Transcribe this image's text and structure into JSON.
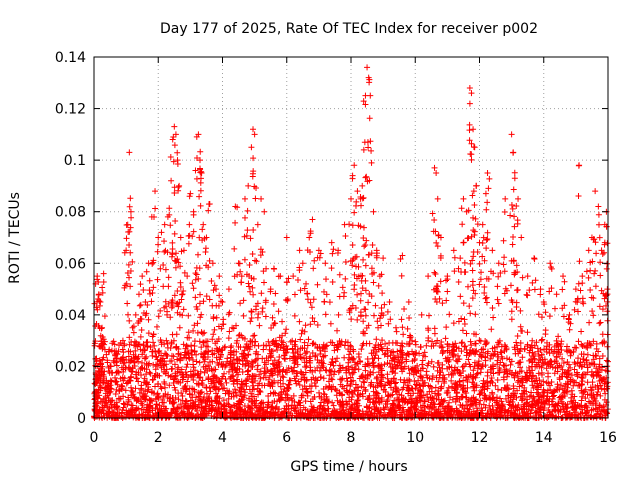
{
  "chart_data": {
    "type": "scatter",
    "title": "Day 177 of 2025, Rate Of TEC Index for receiver p002",
    "xlabel": "GPS time / hours",
    "ylabel": "ROTI / TECUs",
    "xlim": [
      0,
      16
    ],
    "ylim": [
      0,
      0.14
    ],
    "x_ticks": [
      0,
      2,
      4,
      6,
      8,
      10,
      12,
      14,
      16
    ],
    "x_tick_labels": [
      "0",
      "2",
      "4",
      "6",
      "8",
      "10",
      "12",
      "14",
      "16"
    ],
    "y_ticks": [
      0,
      0.02,
      0.04,
      0.06,
      0.08,
      0.1,
      0.12,
      0.14
    ],
    "y_tick_labels": [
      "0",
      "0.02",
      "0.04",
      "0.06",
      "0.08",
      "0.1",
      "0.12",
      "0.14"
    ],
    "grid": true,
    "marker": "+",
    "series": [
      {
        "name": "ROTI",
        "color": "#ff0000",
        "points": [
          [
            0.05,
            0.052
          ],
          [
            0.1,
            0.055
          ],
          [
            0.15,
            0.048
          ],
          [
            0.2,
            0.045
          ],
          [
            0.25,
            0.035
          ],
          [
            0.3,
            0.056
          ],
          [
            0.05,
            0.015
          ],
          [
            0.08,
            0.022
          ],
          [
            0.5,
            0.02
          ],
          [
            0.7,
            0.025
          ],
          [
            0.9,
            0.03
          ],
          [
            1.1,
            0.103
          ],
          [
            1.05,
            0.075
          ],
          [
            1.15,
            0.08
          ],
          [
            1.0,
            0.065
          ],
          [
            1.2,
            0.035
          ],
          [
            1.3,
            0.04
          ],
          [
            1.4,
            0.048
          ],
          [
            1.5,
            0.055
          ],
          [
            1.6,
            0.045
          ],
          [
            1.7,
            0.06
          ],
          [
            1.8,
            0.078
          ],
          [
            1.9,
            0.088
          ],
          [
            2.0,
            0.07
          ],
          [
            2.1,
            0.072
          ],
          [
            2.2,
            0.075
          ],
          [
            2.3,
            0.078
          ],
          [
            2.4,
            0.092
          ],
          [
            2.45,
            0.108
          ],
          [
            2.5,
            0.113
          ],
          [
            2.55,
            0.11
          ],
          [
            2.6,
            0.1
          ],
          [
            2.65,
            0.09
          ],
          [
            2.7,
            0.07
          ],
          [
            2.8,
            0.065
          ],
          [
            2.9,
            0.055
          ],
          [
            3.0,
            0.087
          ],
          [
            3.1,
            0.08
          ],
          [
            3.2,
            0.109
          ],
          [
            3.25,
            0.11
          ],
          [
            3.3,
            0.1
          ],
          [
            3.35,
            0.095
          ],
          [
            3.4,
            0.075
          ],
          [
            3.5,
            0.07
          ],
          [
            3.6,
            0.083
          ],
          [
            3.7,
            0.06
          ],
          [
            3.8,
            0.05
          ],
          [
            3.9,
            0.055
          ],
          [
            4.0,
            0.045
          ],
          [
            4.2,
            0.05
          ],
          [
            4.3,
            0.035
          ],
          [
            4.4,
            0.082
          ],
          [
            4.5,
            0.06
          ],
          [
            4.6,
            0.055
          ],
          [
            4.7,
            0.085
          ],
          [
            4.8,
            0.09
          ],
          [
            4.9,
            0.105
          ],
          [
            4.95,
            0.112
          ],
          [
            5.0,
            0.11
          ],
          [
            5.1,
            0.075
          ],
          [
            5.2,
            0.085
          ],
          [
            5.3,
            0.08
          ],
          [
            5.5,
            0.05
          ],
          [
            5.6,
            0.058
          ],
          [
            5.8,
            0.055
          ],
          [
            6.0,
            0.07
          ],
          [
            6.2,
            0.055
          ],
          [
            6.4,
            0.065
          ],
          [
            6.5,
            0.06
          ],
          [
            6.6,
            0.052
          ],
          [
            6.7,
            0.07
          ],
          [
            6.8,
            0.077
          ],
          [
            7.0,
            0.065
          ],
          [
            7.2,
            0.06
          ],
          [
            7.4,
            0.068
          ],
          [
            7.6,
            0.065
          ],
          [
            7.8,
            0.075
          ],
          [
            8.0,
            0.085
          ],
          [
            8.05,
            0.094
          ],
          [
            8.1,
            0.098
          ],
          [
            8.2,
            0.088
          ],
          [
            8.3,
            0.085
          ],
          [
            8.35,
            0.09
          ],
          [
            8.4,
            0.104
          ],
          [
            8.45,
            0.125
          ],
          [
            8.5,
            0.136
          ],
          [
            8.55,
            0.132
          ],
          [
            8.6,
            0.125
          ],
          [
            8.7,
            0.08
          ],
          [
            8.8,
            0.065
          ],
          [
            8.9,
            0.055
          ],
          [
            9.0,
            0.062
          ],
          [
            9.2,
            0.045
          ],
          [
            9.4,
            0.035
          ],
          [
            9.6,
            0.063
          ],
          [
            9.8,
            0.045
          ],
          [
            10.0,
            0.025
          ],
          [
            10.2,
            0.04
          ],
          [
            10.4,
            0.055
          ],
          [
            10.6,
            0.097
          ],
          [
            10.65,
            0.095
          ],
          [
            10.7,
            0.085
          ],
          [
            10.8,
            0.07
          ],
          [
            11.0,
            0.055
          ],
          [
            11.2,
            0.065
          ],
          [
            11.4,
            0.062
          ],
          [
            11.5,
            0.085
          ],
          [
            11.6,
            0.08
          ],
          [
            11.7,
            0.128
          ],
          [
            11.75,
            0.126
          ],
          [
            11.8,
            0.112
          ],
          [
            11.85,
            0.105
          ],
          [
            11.9,
            0.09
          ],
          [
            12.0,
            0.068
          ],
          [
            12.1,
            0.075
          ],
          [
            12.2,
            0.087
          ],
          [
            12.25,
            0.095
          ],
          [
            12.4,
            0.065
          ],
          [
            12.6,
            0.06
          ],
          [
            12.8,
            0.085
          ],
          [
            13.0,
            0.11
          ],
          [
            13.05,
            0.103
          ],
          [
            13.1,
            0.093
          ],
          [
            13.2,
            0.085
          ],
          [
            13.3,
            0.07
          ],
          [
            13.5,
            0.055
          ],
          [
            13.7,
            0.062
          ],
          [
            13.9,
            0.05
          ],
          [
            14.0,
            0.045
          ],
          [
            14.2,
            0.06
          ],
          [
            14.4,
            0.048
          ],
          [
            14.6,
            0.055
          ],
          [
            14.8,
            0.04
          ],
          [
            15.0,
            0.05
          ],
          [
            15.1,
            0.098
          ],
          [
            15.2,
            0.055
          ],
          [
            15.4,
            0.065
          ],
          [
            15.5,
            0.07
          ],
          [
            15.6,
            0.088
          ],
          [
            15.7,
            0.082
          ],
          [
            15.8,
            0.065
          ],
          [
            15.9,
            0.075
          ],
          [
            15.95,
            0.08
          ],
          [
            15.98,
            0.05
          ]
        ],
        "dense_band_max": 0.03
      }
    ]
  }
}
